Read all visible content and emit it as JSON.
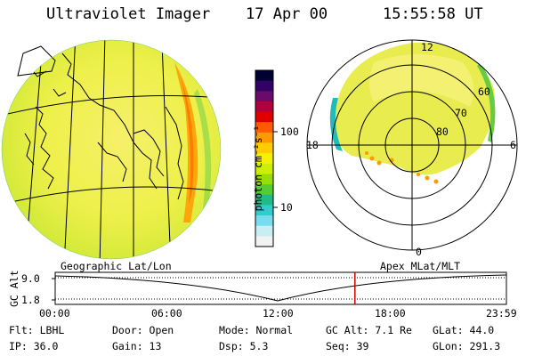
{
  "header": {
    "title": "Ultraviolet Imager",
    "date": "17 Apr 00",
    "time": "15:55:58 UT"
  },
  "colorbar": {
    "unit_label": "photon cm⁻²s⁻¹",
    "ticks": [
      "100",
      "10"
    ],
    "colors": [
      "#000033",
      "#330066",
      "#6a0a6a",
      "#b3003a",
      "#e00000",
      "#ff5a00",
      "#ff9900",
      "#ffcc00",
      "#f5f000",
      "#ccee00",
      "#99dd00",
      "#55cc33",
      "#22bb88",
      "#33cccc",
      "#77ddee",
      "#c8eef4",
      "#f2f2f2"
    ]
  },
  "polar": {
    "mlat_labels": [
      "60",
      "70",
      "80"
    ],
    "mlt_labels": {
      "top": "12",
      "left": "18",
      "right": "6",
      "bottom": "0"
    }
  },
  "timeline": {
    "left_label": "Geographic Lat/Lon",
    "right_label": "Apex MLat/MLT",
    "axis_label": "GC Alt",
    "y_ticks": [
      "9.0",
      "1.8"
    ],
    "x_ticks": [
      "00:00",
      "06:00",
      "12:00",
      "18:00",
      "23:59"
    ],
    "marker_time": "15:55:58",
    "marker_color": "#d00000"
  },
  "info": {
    "flt": "Flt: LBHL",
    "door": "Door: Open",
    "mode": "Mode: Normal",
    "gcalt": "GC Alt: 7.1 Re",
    "glat": "GLat:  44.0",
    "ip": "IP: 36.0",
    "gain": "Gain: 13",
    "dsp": "Dsp:    5.3",
    "seq": "Seq: 39",
    "glon": "GLon: 291.3"
  }
}
